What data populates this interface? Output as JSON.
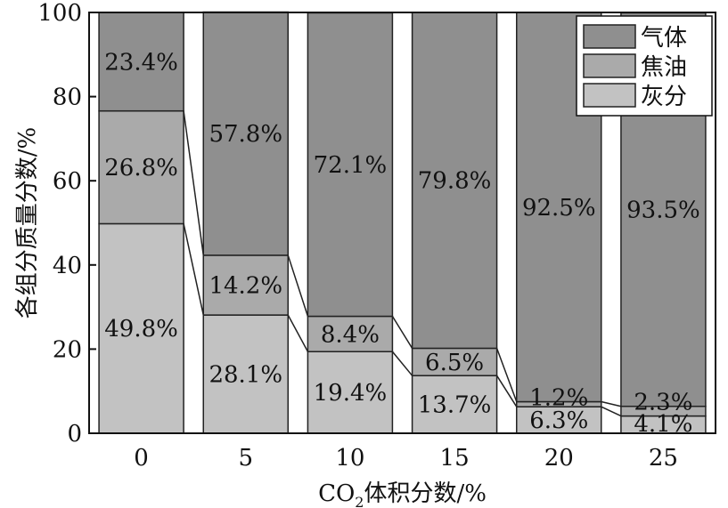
{
  "chart_data": {
    "type": "bar",
    "stacked": true,
    "percent_stacked": true,
    "categories": [
      "0",
      "5",
      "10",
      "15",
      "20",
      "25"
    ],
    "series": [
      {
        "name": "灰分",
        "values": [
          49.8,
          28.1,
          19.4,
          13.7,
          6.3,
          4.1
        ],
        "labels": [
          "49.8%",
          "28.1%",
          "19.4%",
          "13.7%",
          "6.3%",
          "4.1%"
        ],
        "color": "#c2c2c2"
      },
      {
        "name": "焦油",
        "values": [
          26.8,
          14.2,
          8.4,
          6.5,
          1.2,
          2.3
        ],
        "labels": [
          "26.8%",
          "14.2%",
          "8.4%",
          "6.5%",
          "1.2%",
          "2.3%"
        ],
        "color": "#aaaaaa"
      },
      {
        "name": "气体",
        "values": [
          23.4,
          57.8,
          72.1,
          79.8,
          92.5,
          93.5
        ],
        "labels": [
          "23.4%",
          "57.8%",
          "72.1%",
          "79.8%",
          "92.5%",
          "93.5%"
        ],
        "color": "#8f8f8f"
      }
    ],
    "legend_order": [
      "气体",
      "焦油",
      "灰分"
    ],
    "legend_position": "top-right",
    "xlabel_main": "CO",
    "xlabel_sub": "2",
    "xlabel_rest": "体积分数/%",
    "ylabel": "各组分质量分数/%",
    "ylim": [
      0,
      100
    ],
    "yticks": [
      "0",
      "20",
      "40",
      "60",
      "80",
      "100"
    ],
    "grid": false,
    "connector_lines": true
  }
}
